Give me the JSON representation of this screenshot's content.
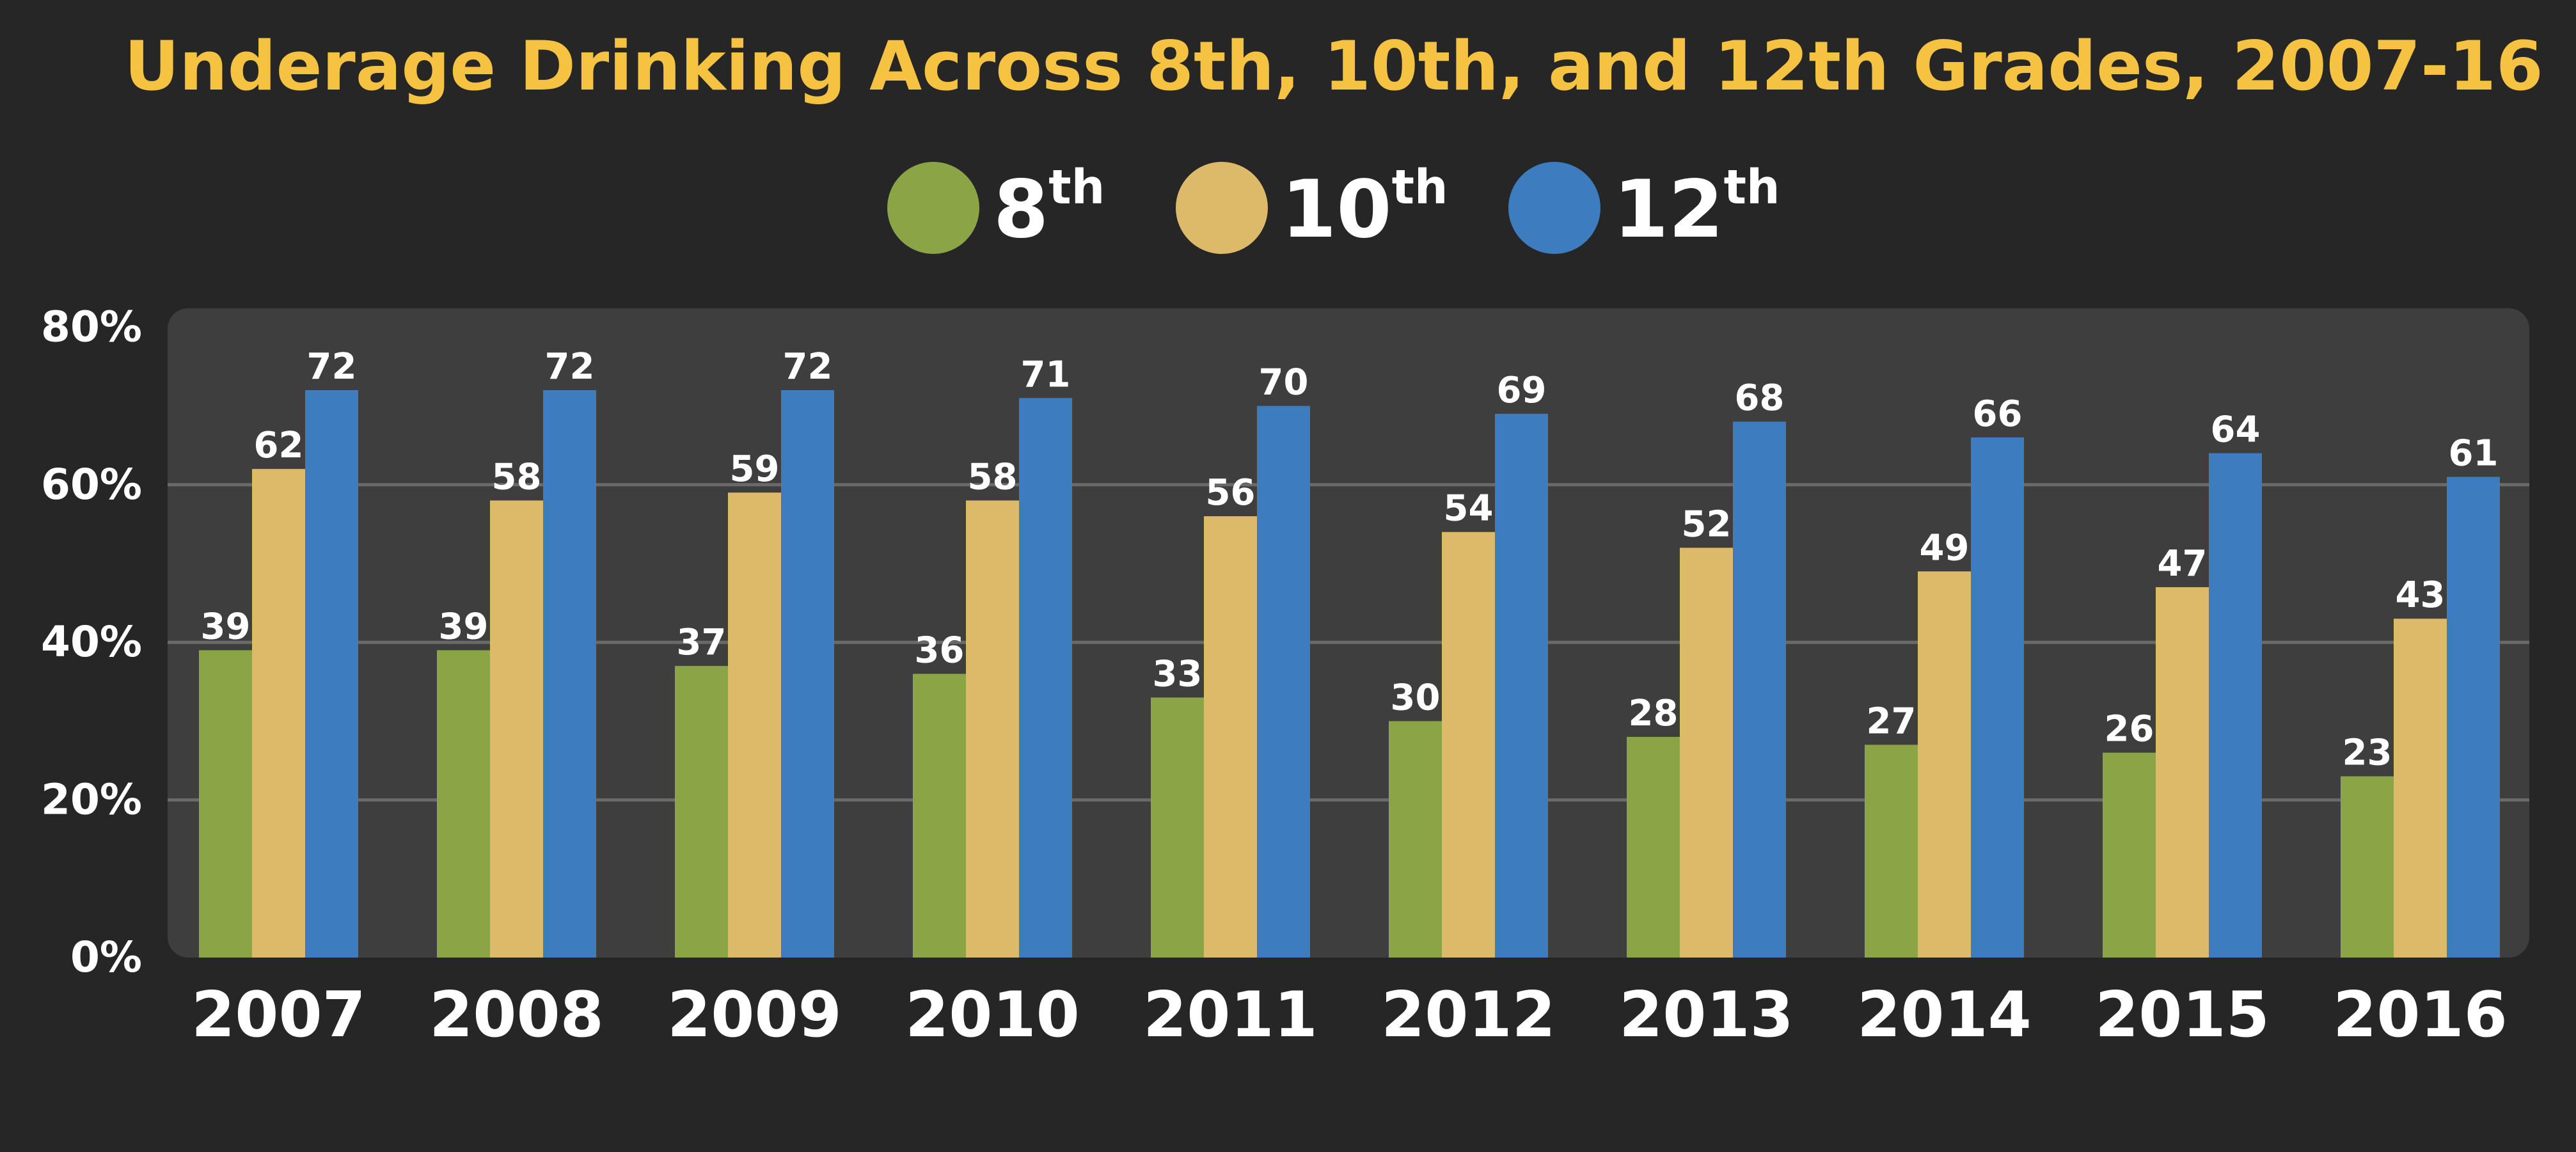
{
  "chart_data": {
    "type": "bar",
    "title": "Underage Drinking Across 8th, 10th, and 12th Grades, 2007-16",
    "xlabel": "",
    "ylabel": "",
    "categories": [
      "2007",
      "2008",
      "2009",
      "2010",
      "2011",
      "2012",
      "2013",
      "2014",
      "2015",
      "2016"
    ],
    "ylim": [
      0,
      80
    ],
    "yticks": [
      0,
      20,
      40,
      60,
      80
    ],
    "ytick_labels": [
      "0%",
      "20%",
      "40%",
      "60%",
      "80%"
    ],
    "grid": true,
    "legend_position": "top-center",
    "series": [
      {
        "name": "8th",
        "legend_base": "8",
        "legend_sup": "th",
        "color": "#8BA446",
        "values": [
          39,
          39,
          37,
          36,
          33,
          30,
          28,
          27,
          26,
          23
        ]
      },
      {
        "name": "10th",
        "legend_base": "10",
        "legend_sup": "th",
        "color": "#DDB96A",
        "values": [
          62,
          58,
          59,
          58,
          56,
          54,
          52,
          49,
          47,
          43
        ]
      },
      {
        "name": "12th",
        "legend_base": "12",
        "legend_sup": "th",
        "color": "#3D7DBF",
        "values": [
          72,
          72,
          72,
          71,
          70,
          69,
          68,
          66,
          64,
          61
        ]
      }
    ],
    "colors": {
      "background": "#262626",
      "plot_background": "#3E3E3E",
      "title": "#F5C242",
      "text": "#FFFFFF",
      "grid": "#6A6A6A"
    }
  }
}
